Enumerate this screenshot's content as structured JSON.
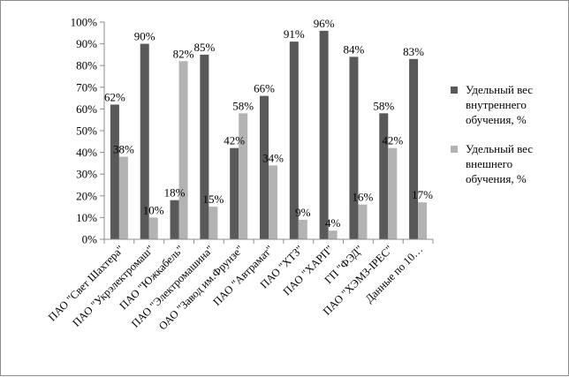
{
  "chart_data": {
    "type": "bar",
    "categories": [
      "ПАО \"Свет Шахтера\"",
      "ПАО \"Укрэлектромаш\"",
      "ПАО \"Южкабель\"",
      "ПАО \"Электромашина\"",
      "ОАО \"Завод им.Фрунзе\"",
      "ПАО \"Автрамат\"",
      "ПАО \"ХТЗ\"",
      "ПАО \"ХАРП\"",
      "ГП \"ФЭД\"",
      "ПАО \"ХЭМЗ-IPEC\"",
      "Данные по 10…"
    ],
    "series": [
      {
        "name_lines": [
          "Удельный вес",
          "внутреннего",
          "обучения, %"
        ],
        "color": "#595959",
        "values": [
          62,
          90,
          18,
          85,
          42,
          66,
          91,
          96,
          84,
          58,
          83
        ]
      },
      {
        "name_lines": [
          "Удельный вес",
          "внешнего",
          "обучения, %"
        ],
        "color": "#b3b3b3",
        "values": [
          38,
          10,
          82,
          15,
          58,
          34,
          9,
          4,
          16,
          42,
          17
        ]
      }
    ],
    "ylim": [
      0,
      100
    ],
    "yticks": [
      "0%",
      "10%",
      "20%",
      "30%",
      "40%",
      "50%",
      "60%",
      "70%",
      "80%",
      "90%",
      "100%"
    ],
    "value_suffix": "%",
    "grid": false,
    "legend": "right"
  }
}
